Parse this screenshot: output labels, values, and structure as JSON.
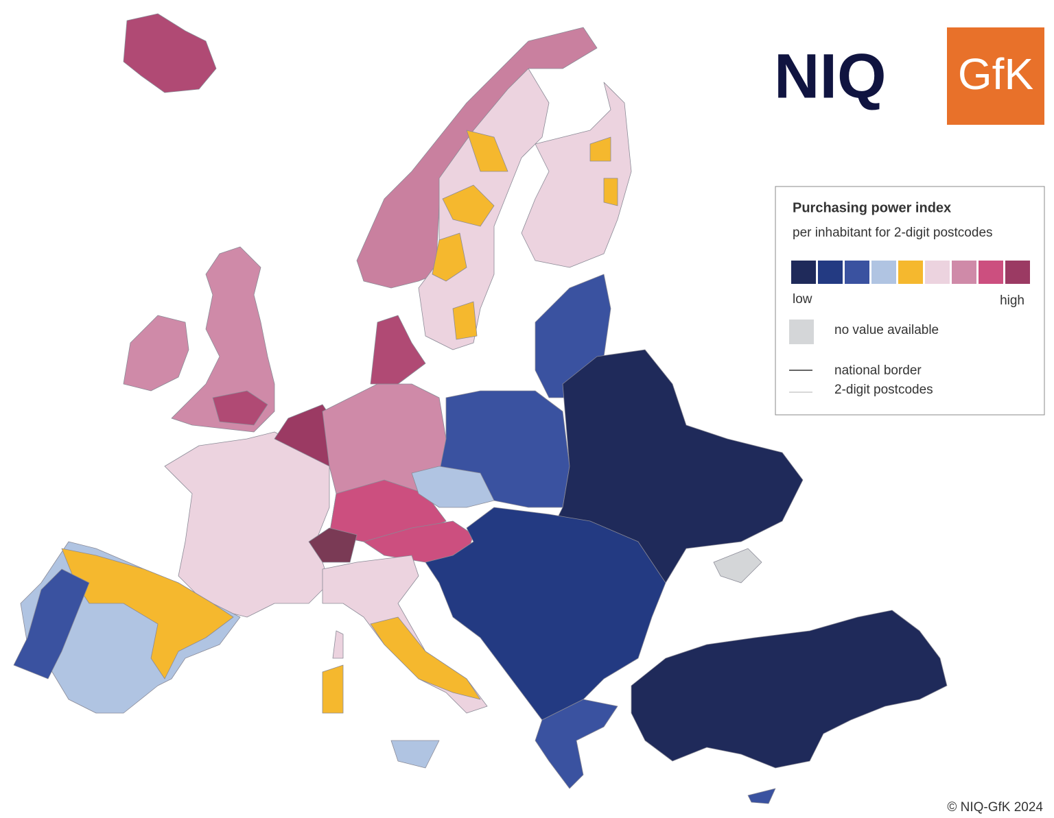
{
  "logos": {
    "niq": "NIQ",
    "gfk": "GfK"
  },
  "legend": {
    "title": "Purchasing power index",
    "subtitle": "per inhabitant for 2-digit postcodes",
    "scale_colors": [
      "#1f2a5a",
      "#233a82",
      "#3a52a0",
      "#b0c4e2",
      "#f5b82e",
      "#ecd3df",
      "#cf8aa8",
      "#cc4f7f",
      "#9b3a63"
    ],
    "low": "low",
    "high": "high",
    "no_value": "no value available",
    "no_value_color": "#d4d6d8",
    "national_border": "national border",
    "postcodes": "2-digit postcodes"
  },
  "copyright": "© NIQ-GfK 2024"
}
